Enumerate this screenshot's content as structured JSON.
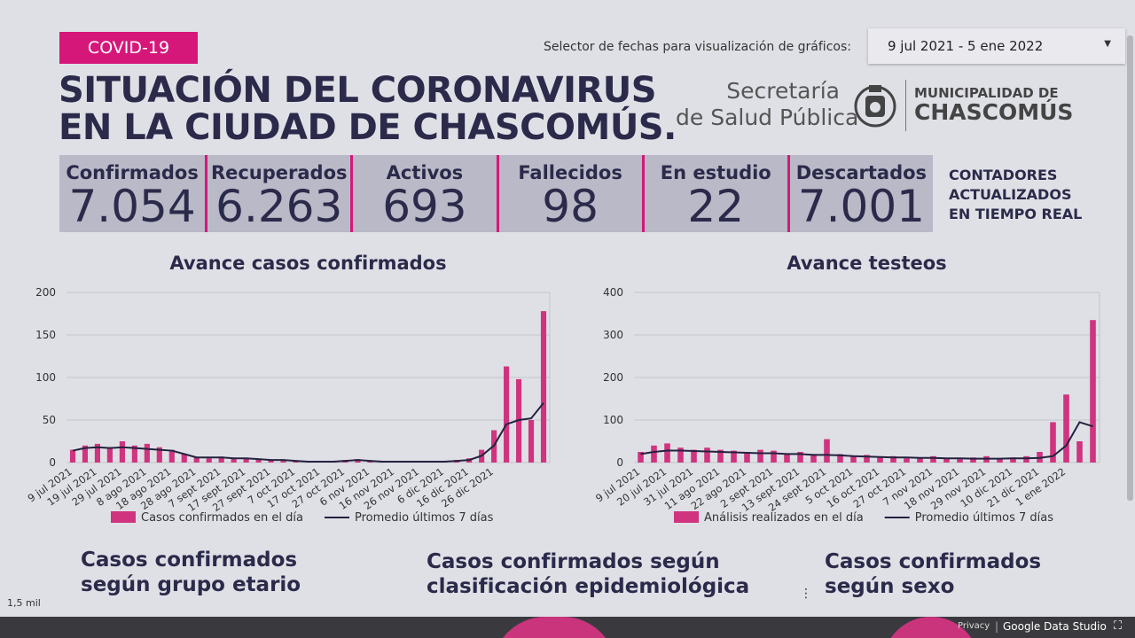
{
  "header": {
    "tag": "COVID-19",
    "title_line1": "SITUACIÓN DEL CORONAVIRUS",
    "title_line2": "EN LA CIUDAD DE CHASCOMÚS.",
    "selector_label": "Selector de fechas para visualización de gráficos:",
    "selector_value": "9 jul 2021 - 5 ene 2022",
    "logo_line1": "Secretaría",
    "logo_line2": "de Salud Pública",
    "logo_muni1": "MUNICIPALIDAD DE",
    "logo_muni2": "CHASCOMÚS"
  },
  "counters": [
    {
      "label": "Confirmados",
      "value": "7.054"
    },
    {
      "label": "Recuperados",
      "value": "6.263"
    },
    {
      "label": "Activos",
      "value": "693"
    },
    {
      "label": "Fallecidos",
      "value": "98"
    },
    {
      "label": "En estudio",
      "value": "22"
    },
    {
      "label": "Descartados",
      "value": "7.001"
    }
  ],
  "counters_note": [
    "CONTADORES",
    "ACTUALIZADOS",
    "EN TIEMPO REAL"
  ],
  "chart_data": [
    {
      "type": "bar",
      "title": "Avance casos confirmados",
      "grid": true,
      "ylim": [
        0,
        200
      ],
      "yticks": [
        0,
        50,
        100,
        150,
        200
      ],
      "categories": [
        "9 jul 2021",
        null,
        "19 jul 2021",
        null,
        "29 jul 2021",
        null,
        "8 ago 2021",
        null,
        "18 ago 2021",
        null,
        "28 ago 2021",
        null,
        "7 sept 2021",
        null,
        "17 sept 2021",
        null,
        "27 sept 2021",
        null,
        "7 oct 2021",
        null,
        "17 oct 2021",
        null,
        "27 oct 2021",
        null,
        "6 nov 2021",
        null,
        "16 nov 2021",
        null,
        "26 nov 2021",
        null,
        "6 dic 2021",
        null,
        "16 dic 2021",
        null,
        "26 dic 2021",
        null,
        null,
        null,
        null
      ],
      "series": [
        {
          "name": "Casos confirmados en el día",
          "color": "#d0347f",
          "type": "bar",
          "values": [
            15,
            20,
            22,
            18,
            25,
            20,
            22,
            18,
            15,
            10,
            6,
            5,
            7,
            5,
            5,
            4,
            3,
            2,
            2,
            1,
            1,
            1,
            3,
            4,
            2,
            1,
            1,
            1,
            2,
            1,
            2,
            3,
            5,
            15,
            38,
            113,
            98,
            50,
            178
          ]
        },
        {
          "name": "Promedio últimos 7 días",
          "color": "#23223f",
          "type": "line",
          "values": [
            14,
            17,
            18,
            17,
            18,
            17,
            16,
            15,
            14,
            10,
            6,
            6,
            6,
            5,
            5,
            4,
            3,
            3,
            2,
            1,
            1,
            1,
            2,
            3,
            2,
            1,
            1,
            1,
            1,
            1,
            1,
            2,
            3,
            8,
            20,
            45,
            50,
            52,
            70
          ]
        }
      ]
    },
    {
      "type": "bar",
      "title": "Avance testeos",
      "grid": true,
      "ylim": [
        0,
        400
      ],
      "yticks": [
        0,
        100,
        200,
        300,
        400
      ],
      "categories": [
        "9 jul 2021",
        null,
        "20 jul 2021",
        null,
        "31 jul 2021",
        null,
        "11 ago 2021",
        null,
        "22 ago 2021",
        null,
        "2 sept 2021",
        null,
        "13 sept 2021",
        null,
        "24 sept 2021",
        null,
        "5 oct 2021",
        null,
        "16 oct 2021",
        null,
        "27 oct 2021",
        null,
        "7 nov 2021",
        null,
        "18 nov 2021",
        null,
        "29 nov 2021",
        null,
        "10 dic 2021",
        null,
        "21 dic 2021",
        null,
        "1 ene 2022",
        null,
        null
      ],
      "series": [
        {
          "name": "Análisis realizados en el día",
          "color": "#d0347f",
          "type": "bar",
          "values": [
            25,
            40,
            45,
            35,
            30,
            35,
            30,
            28,
            25,
            30,
            28,
            22,
            25,
            20,
            55,
            20,
            15,
            18,
            12,
            15,
            10,
            12,
            15,
            10,
            8,
            12,
            15,
            10,
            12,
            15,
            25,
            95,
            160,
            50,
            335
          ]
        },
        {
          "name": "Promedio últimos 7 días",
          "color": "#23223f",
          "type": "line",
          "values": [
            20,
            25,
            28,
            28,
            27,
            26,
            25,
            24,
            23,
            22,
            22,
            20,
            20,
            18,
            18,
            17,
            15,
            14,
            13,
            12,
            12,
            11,
            11,
            10,
            10,
            9,
            9,
            9,
            10,
            10,
            11,
            15,
            40,
            95,
            85
          ]
        }
      ]
    }
  ],
  "section_titles": [
    [
      "Casos confirmados",
      "según grupo etario"
    ],
    [
      "Casos confirmados según",
      "clasificación epidemiológica"
    ],
    [
      "Casos confirmados",
      "según sexo"
    ]
  ],
  "axis_note": "1,5 mil",
  "footer": {
    "privacy": "Privacy",
    "brand": "Google Data Studio"
  }
}
